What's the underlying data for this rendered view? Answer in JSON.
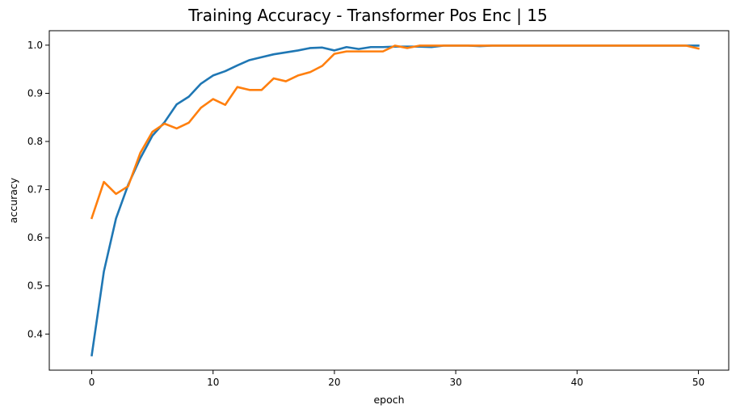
{
  "chart_data": {
    "type": "line",
    "title": "Training Accuracy - Transformer Pos Enc | 15",
    "xlabel": "epoch",
    "ylabel": "accuracy",
    "xlim": [
      -3.5,
      52.5
    ],
    "ylim": [
      0.325,
      1.03
    ],
    "xticks": [
      0,
      10,
      20,
      30,
      40,
      50
    ],
    "yticks": [
      0.4,
      0.5,
      0.6,
      0.7,
      0.8,
      0.9,
      1.0
    ],
    "ytick_labels": [
      "0.4",
      "0.5",
      "0.6",
      "0.7",
      "0.8",
      "0.9",
      "1.0"
    ],
    "grid": false,
    "legend": "none",
    "x": [
      0,
      1,
      2,
      3,
      4,
      5,
      6,
      7,
      8,
      9,
      10,
      11,
      12,
      13,
      14,
      15,
      16,
      17,
      18,
      19,
      20,
      21,
      22,
      23,
      24,
      25,
      26,
      27,
      28,
      29,
      30,
      31,
      32,
      33,
      34,
      35,
      36,
      37,
      38,
      39,
      40,
      41,
      42,
      43,
      44,
      45,
      46,
      47,
      48,
      49,
      50
    ],
    "series": [
      {
        "color": "#1f77b4",
        "values": [
          0.356,
          0.53,
          0.64,
          0.71,
          0.765,
          0.812,
          0.84,
          0.877,
          0.893,
          0.92,
          0.937,
          0.946,
          0.958,
          0.969,
          0.975,
          0.981,
          0.985,
          0.989,
          0.994,
          0.995,
          0.989,
          0.996,
          0.992,
          0.996,
          0.996,
          0.997,
          0.997,
          0.997,
          0.996,
          0.999,
          0.999,
          0.999,
          0.998,
          0.999,
          0.999,
          0.999,
          0.999,
          0.999,
          0.999,
          0.999,
          0.999,
          0.999,
          0.999,
          0.999,
          0.999,
          0.999,
          0.999,
          0.999,
          0.999,
          0.999,
          0.999
        ]
      },
      {
        "color": "#ff7f0e",
        "values": [
          0.641,
          0.716,
          0.691,
          0.707,
          0.776,
          0.82,
          0.837,
          0.827,
          0.839,
          0.87,
          0.888,
          0.876,
          0.913,
          0.907,
          0.907,
          0.931,
          0.925,
          0.937,
          0.944,
          0.957,
          0.982,
          0.987,
          0.987,
          0.987,
          0.987,
          0.999,
          0.994,
          0.999,
          0.999,
          0.999,
          0.999,
          0.999,
          0.999,
          0.999,
          0.999,
          0.999,
          0.999,
          0.999,
          0.999,
          0.999,
          0.999,
          0.999,
          0.999,
          0.999,
          0.999,
          0.999,
          0.999,
          0.999,
          0.999,
          0.999,
          0.993
        ]
      }
    ]
  }
}
